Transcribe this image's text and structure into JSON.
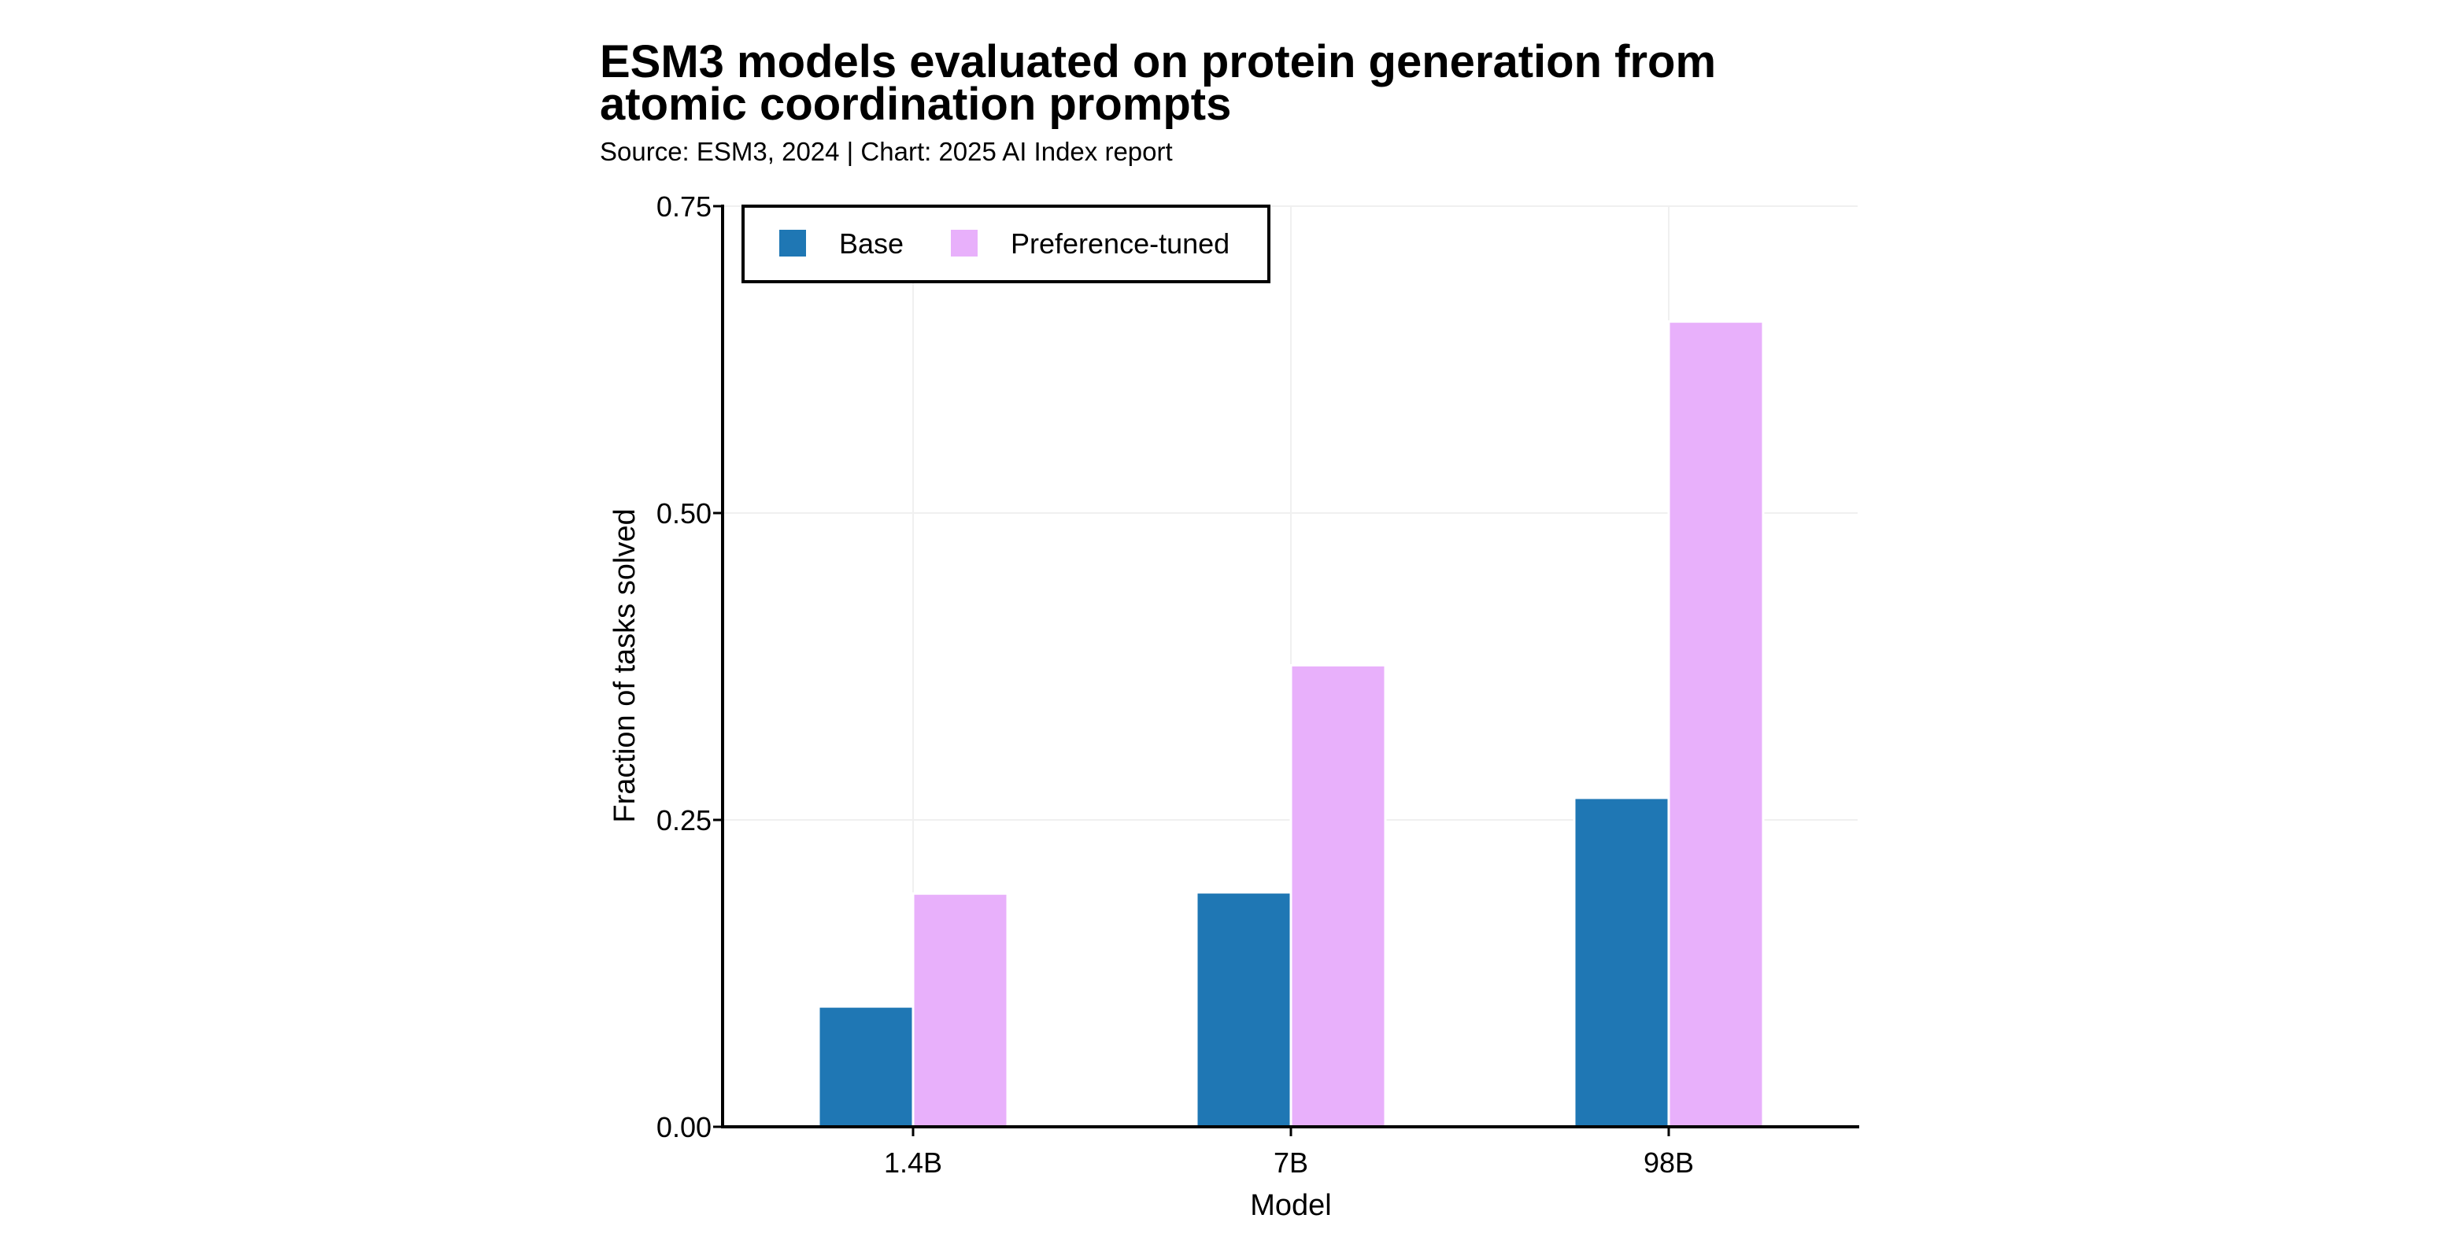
{
  "chart_data": {
    "type": "bar",
    "title": "ESM3 models evaluated on protein generation from atomic coordination prompts",
    "title_lines": [
      "ESM3 models evaluated on protein generation from",
      "atomic coordination prompts"
    ],
    "subtitle": "Source: ESM3, 2024 | Chart: 2025 AI Index report",
    "xlabel": "Model",
    "ylabel": "Fraction of tasks solved",
    "categories": [
      "1.4B",
      "7B",
      "98B"
    ],
    "series": [
      {
        "name": "Base",
        "color": "#1f77b4",
        "values": [
          0.098,
          0.191,
          0.268
        ]
      },
      {
        "name": "Preference-tuned",
        "color": "#e8b0fb",
        "values": [
          0.19,
          0.376,
          0.656
        ]
      }
    ],
    "ylim": [
      0,
      0.75
    ],
    "yticks": [
      0,
      0.25,
      0.5,
      0.75
    ],
    "ytick_labels": [
      "0.00",
      "0.25",
      "0.50",
      "0.75"
    ],
    "grid": true,
    "legend_position": "top-left"
  }
}
